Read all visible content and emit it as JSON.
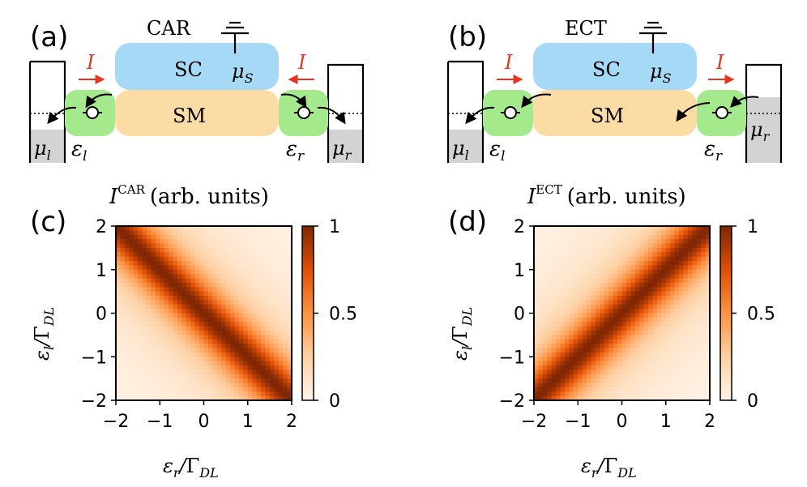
{
  "panels": {
    "a": {
      "letter": "(a)",
      "title": "CAR",
      "sc": "SC",
      "sm": "SM",
      "mu_s": "μ",
      "mu_s_sub": "S",
      "current": "I",
      "eps_l": "ε",
      "eps_l_sub": "l",
      "eps_r": "ε",
      "eps_r_sub": "r",
      "mu_l": "μ",
      "mu_l_sub": "l",
      "mu_r": "μ",
      "mu_r_sub": "r"
    },
    "b": {
      "letter": "(b)",
      "title": "ECT",
      "sc": "SC",
      "sm": "SM",
      "mu_s": "μ",
      "mu_s_sub": "S",
      "current": "I",
      "eps_l": "ε",
      "eps_l_sub": "l",
      "eps_r": "ε",
      "eps_r_sub": "r",
      "mu_l": "μ",
      "mu_l_sub": "l",
      "mu_r": "μ",
      "mu_r_sub": "r"
    }
  },
  "colors": {
    "sc": "#a6d9f5",
    "sm": "#fbdca5",
    "dot": "#a4ea8c",
    "arrow_red": "#e8341c",
    "lead_fill": "#d3d3d3",
    "cmap_low": "#fff5eb",
    "cmap_mid": "#f7853a",
    "cmap_high": "#7f2704"
  },
  "chart_data": [
    {
      "panel": "(c)",
      "type": "heatmap",
      "title_main": "I",
      "title_sup": "CAR",
      "title_rest": "(arb. units)",
      "xlabel_main": "ε",
      "xlabel_sub": "r",
      "xlabel_den": "Γ",
      "xlabel_den_sub": "DL",
      "ylabel_main": "ε",
      "ylabel_sub": "l",
      "ylabel_den": "Γ",
      "ylabel_den_sub": "DL",
      "xlim": [
        -2,
        2
      ],
      "ylim": [
        -2,
        2
      ],
      "x_ticks": [
        "−2",
        "−1",
        "0",
        "1",
        "2"
      ],
      "y_ticks": [
        "−2",
        "−1",
        "0",
        "1",
        "2"
      ],
      "colorbar_ticks": [
        "1",
        "0.5",
        "0"
      ],
      "clim": [
        0,
        1
      ],
      "function": "I = 1 / (1 + ((eps_l + eps_r)/w)^2)",
      "peak_line": "eps_l = -eps_r",
      "width_w": 0.7,
      "grid_n": 40
    },
    {
      "panel": "(d)",
      "type": "heatmap",
      "title_main": "I",
      "title_sup": "ECT",
      "title_rest": "(arb. units)",
      "xlabel_main": "ε",
      "xlabel_sub": "r",
      "xlabel_den": "Γ",
      "xlabel_den_sub": "DL",
      "ylabel_main": "ε",
      "ylabel_sub": "l",
      "ylabel_den": "Γ",
      "ylabel_den_sub": "DL",
      "xlim": [
        -2,
        2
      ],
      "ylim": [
        -2,
        2
      ],
      "x_ticks": [
        "−2",
        "−1",
        "0",
        "1",
        "2"
      ],
      "y_ticks": [
        "−2",
        "−1",
        "0",
        "1",
        "2"
      ],
      "colorbar_ticks": [
        "1",
        "0.5",
        "0"
      ],
      "clim": [
        0,
        1
      ],
      "function": "I = 1 / (1 + ((eps_l - eps_r)/w)^2)",
      "peak_line": "eps_l = eps_r",
      "width_w": 0.7,
      "grid_n": 40
    }
  ]
}
